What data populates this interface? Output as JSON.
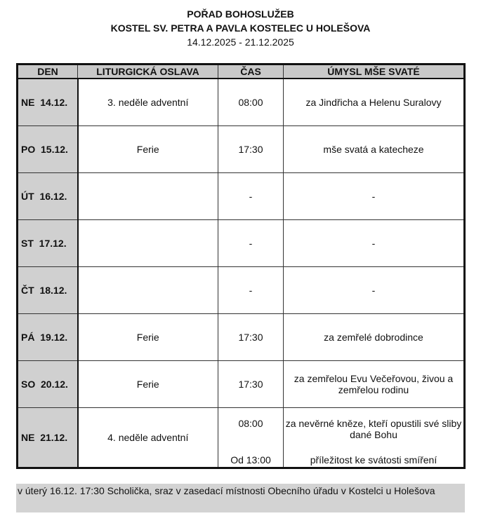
{
  "title": "POŘAD BOHOSLUŽEB",
  "subtitle": "KOSTEL SV. PETRA A PAVLA KOSTELEC U HOLEŠOVA",
  "date_range": "14.12.2025 - 21.12.2025",
  "columns": [
    "DEN",
    "LITURGICKÁ OSLAVA",
    "ČAS",
    "ÚMYSL MŠE SVATÉ"
  ],
  "rows": [
    {
      "day": "NE  14.12.",
      "celebration": "3. neděle adventní",
      "time": "08:00",
      "intention": "za Jindřicha a Helenu Suralovy"
    },
    {
      "day": "PO  15.12.",
      "celebration": "Ferie",
      "time": "17:30",
      "intention": "mše svatá a katecheze"
    },
    {
      "day": "ÚT  16.12.",
      "celebration": "",
      "time": "-",
      "intention": "-"
    },
    {
      "day": "ST  17.12.",
      "celebration": "",
      "time": "-",
      "intention": "-"
    },
    {
      "day": "ČT  18.12.",
      "celebration": "",
      "time": "-",
      "intention": "-"
    },
    {
      "day": "PÁ  19.12.",
      "celebration": "Ferie",
      "time": "17:30",
      "intention": "za zemřelé dobrodince"
    },
    {
      "day": "SO  20.12.",
      "celebration": "Ferie",
      "time": "17:30",
      "intention": "za zemřelou Evu Večeřovou, živou a zemřelou rodinu"
    },
    {
      "day": "NE  21.12.",
      "celebration": "4. neděle adventní",
      "time": "08:00",
      "time2": "Od 13:00",
      "intention": "za nevěrné kněze, kteří opustili své sliby dané Bohu",
      "intention2": "příležitost ke svátosti smíření"
    }
  ],
  "note": "v úterý 16.12. 17:30 Scholička, sraz v zasedací místnosti Obecního úřadu v Kostelci u Holešova"
}
